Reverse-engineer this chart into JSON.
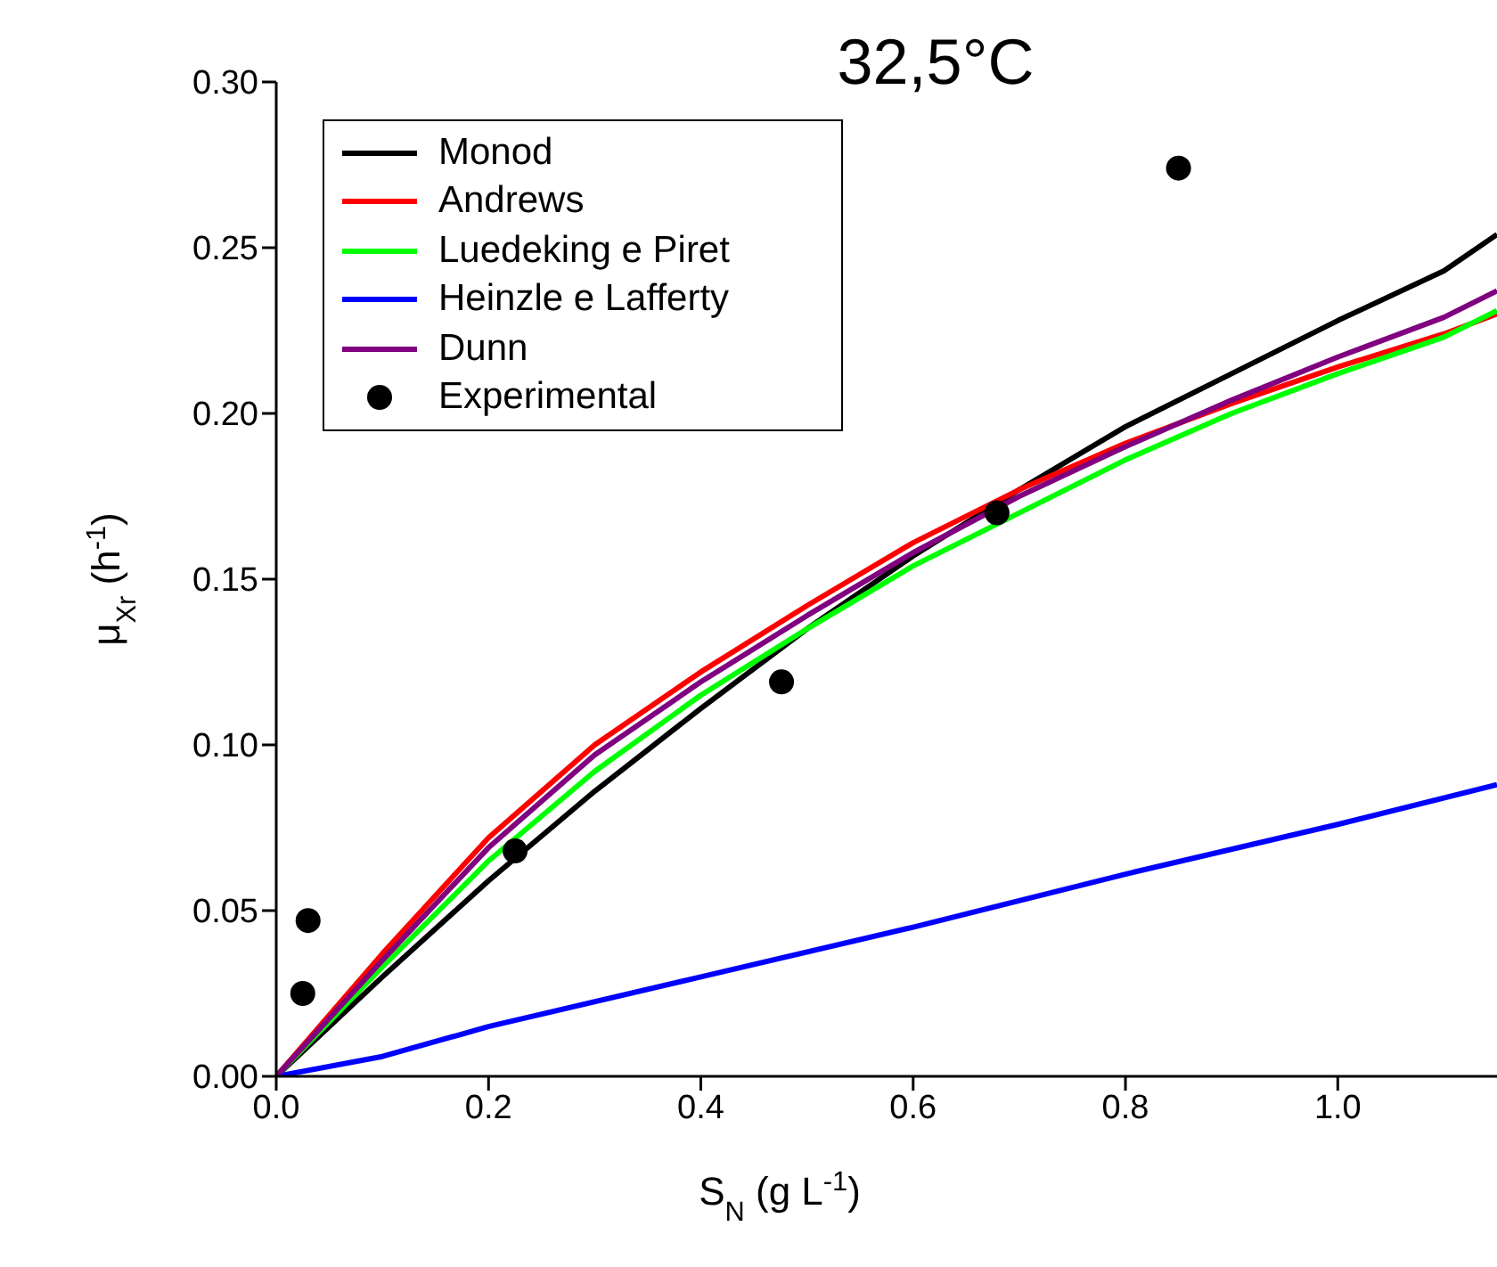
{
  "chart_data": {
    "type": "line",
    "title": "32,5°C",
    "xlabel": "S$_{N}$ (g L$^{-1}$)",
    "ylabel": "μ$_{Xr}$ (h$^{-1}$)",
    "xlim": [
      0,
      1.15
    ],
    "xticks": [
      {
        "value": 0,
        "label": "0.0"
      },
      {
        "value": 0.2,
        "label": "0.2"
      },
      {
        "value": 0.4,
        "label": "0.4"
      },
      {
        "value": 0.6,
        "label": "0.6"
      },
      {
        "value": 0.8,
        "label": "0.8"
      },
      {
        "value": 1,
        "label": "1.0"
      }
    ],
    "ylim": [
      0,
      0.3
    ],
    "yticks": [
      {
        "value": 0,
        "label": "0.00"
      },
      {
        "value": 0.05,
        "label": "0.05"
      },
      {
        "value": 0.1,
        "label": "0.10"
      },
      {
        "value": 0.15,
        "label": "0.15"
      },
      {
        "value": 0.2,
        "label": "0.20"
      },
      {
        "value": 0.25,
        "label": "0.25"
      },
      {
        "value": 0.3,
        "label": "0.30"
      }
    ],
    "grid": false,
    "legend": "top left",
    "marker": "none",
    "line_style": "solid",
    "series": [
      {
        "name": "Monod",
        "color": "#000000",
        "x": [
          0,
          0.1,
          0.2,
          0.3,
          0.4,
          0.5,
          0.6,
          0.7,
          0.8,
          0.9,
          1.0,
          1.1,
          1.15
        ],
        "values": [
          0,
          0.03,
          0.059,
          0.086,
          0.111,
          0.135,
          0.157,
          0.177,
          0.196,
          0.212,
          0.228,
          0.243,
          0.254
        ]
      },
      {
        "name": "Andrews",
        "color": "#ff0000",
        "x": [
          0,
          0.1,
          0.2,
          0.3,
          0.4,
          0.5,
          0.6,
          0.7,
          0.8,
          0.9,
          1.0,
          1.1,
          1.15
        ],
        "values": [
          0,
          0.037,
          0.072,
          0.1,
          0.122,
          0.142,
          0.161,
          0.177,
          0.191,
          0.203,
          0.214,
          0.224,
          0.23
        ]
      },
      {
        "name": "Luedeking e Piret",
        "color": "#00ff00",
        "x": [
          0,
          0.1,
          0.2,
          0.3,
          0.4,
          0.5,
          0.6,
          0.7,
          0.8,
          0.9,
          1.0,
          1.1,
          1.15
        ],
        "values": [
          0,
          0.033,
          0.065,
          0.092,
          0.115,
          0.135,
          0.154,
          0.17,
          0.186,
          0.2,
          0.212,
          0.223,
          0.231
        ]
      },
      {
        "name": "Heinzle e Lafferty",
        "color": "#0000ff",
        "x": [
          0,
          0.1,
          0.2,
          0.4,
          0.6,
          0.8,
          1.0,
          1.15
        ],
        "values": [
          0,
          0.006,
          0.015,
          0.03,
          0.045,
          0.061,
          0.076,
          0.088
        ]
      },
      {
        "name": "Dunn",
        "color": "#800080",
        "x": [
          0,
          0.1,
          0.2,
          0.3,
          0.4,
          0.5,
          0.6,
          0.7,
          0.8,
          0.9,
          1.0,
          1.1,
          1.15
        ],
        "values": [
          0,
          0.035,
          0.069,
          0.097,
          0.119,
          0.139,
          0.158,
          0.175,
          0.19,
          0.204,
          0.217,
          0.229,
          0.237
        ]
      },
      {
        "name": "Experimental",
        "type": "scatter",
        "marker": "circle",
        "color": "#000000",
        "x": [
          0.025,
          0.03,
          0.225,
          0.476,
          0.679,
          0.85
        ],
        "values": [
          0.025,
          0.047,
          0.068,
          0.119,
          0.17,
          0.274
        ]
      }
    ]
  }
}
